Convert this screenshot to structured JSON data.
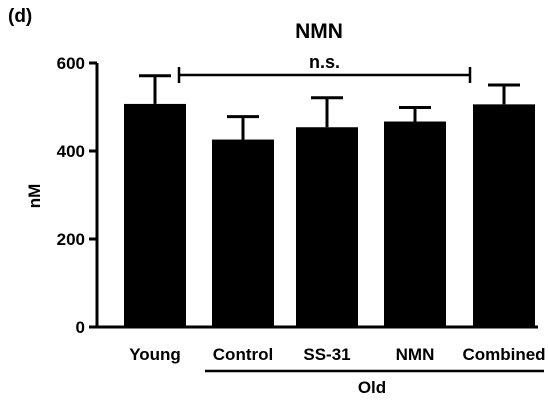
{
  "panel_label": "(d)",
  "chart_data": {
    "type": "bar",
    "title": "NMN",
    "ylabel": "nM",
    "xlabel": "",
    "categories": [
      "Young",
      "Control",
      "SS-31",
      "NMN",
      "Combined"
    ],
    "values": [
      507,
      426,
      454,
      467,
      506
    ],
    "error_upper": [
      571,
      478,
      521,
      499,
      550
    ],
    "ylim": [
      0,
      600
    ],
    "yticks": [
      0,
      200,
      400,
      600
    ],
    "ytick_labels": [
      "0",
      "200",
      "400",
      "600"
    ],
    "bar_color": "#000000",
    "grid": false,
    "legend": "none",
    "significance": {
      "label": "n.s.",
      "from": "Young",
      "to": "Combined"
    },
    "group": {
      "label": "Old",
      "from": "Control",
      "to": "Combined"
    }
  }
}
